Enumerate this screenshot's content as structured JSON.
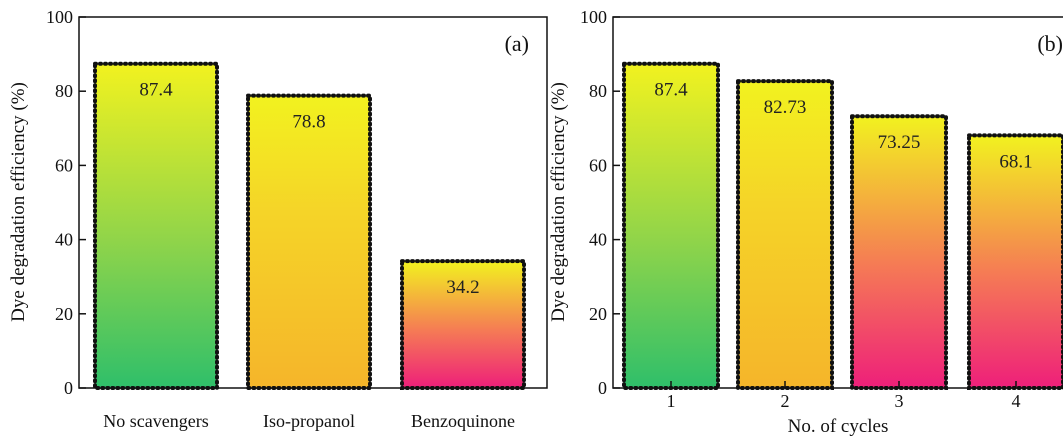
{
  "chart_data": [
    {
      "type": "bar",
      "panel_label": "(a)",
      "categories": [
        "No scavengers",
        "Iso-propanol",
        "Benzoquinone"
      ],
      "values": [
        87.4,
        78.8,
        34.2
      ],
      "value_labels": [
        "87.4",
        "78.8",
        "34.2"
      ],
      "xlabel": "",
      "ylabel": "Dye degradation efficiency (%)",
      "ylim": [
        0,
        100
      ],
      "yticks": [
        "0",
        "20",
        "40",
        "60",
        "80",
        "100"
      ],
      "bar_gradients": [
        "green-yellow",
        "yellow-orange",
        "pink-yellow"
      ]
    },
    {
      "type": "bar",
      "panel_label": "(b)",
      "categories": [
        "1",
        "2",
        "3",
        "4"
      ],
      "values": [
        87.4,
        82.73,
        73.25,
        68.1
      ],
      "value_labels": [
        "87.4",
        "82.73",
        "73.25",
        "68.1"
      ],
      "xlabel": "No. of cycles",
      "ylabel": "Dye degradation efficiency (%)",
      "ylim": [
        0,
        100
      ],
      "yticks": [
        "0",
        "20",
        "40",
        "60",
        "80",
        "100"
      ],
      "bar_gradients": [
        "green-yellow",
        "yellow-orange",
        "pink-yellow",
        "pink-yellow"
      ]
    }
  ],
  "colors": {
    "green": "#2fbf6a",
    "yellow": "#f2f21f",
    "orange": "#f5b52a",
    "pink": "#ee1f7a",
    "axis": "#111111",
    "bar_border": "#111111"
  }
}
